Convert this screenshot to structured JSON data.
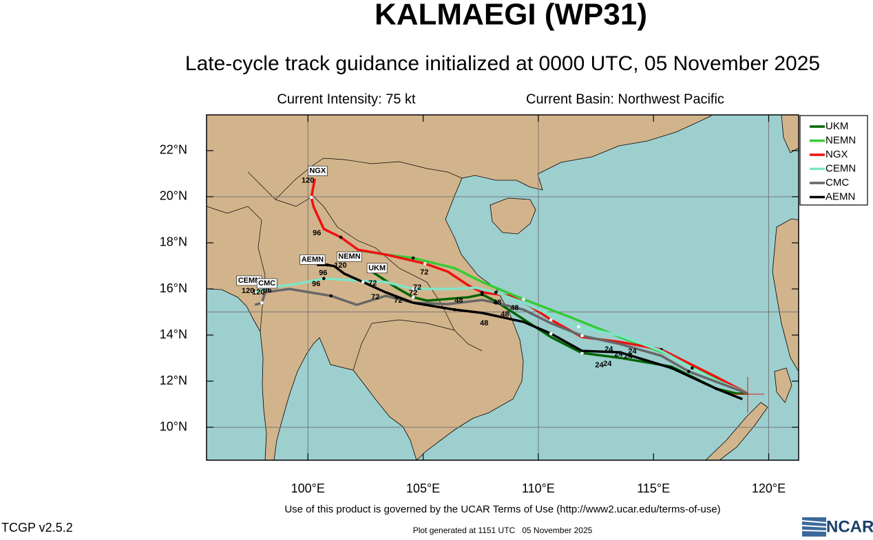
{
  "title": "KALMAEGI (WP31)",
  "subtitle": "Late-cycle track guidance initialized at 0000 UTC, 05 November 2025",
  "current_intensity": "Current Intensity: 75 kt",
  "current_basin": "Current Basin: Northwest Pacific",
  "map": {
    "lonlim": [
      95.6,
      121.3
    ],
    "latlim": [
      8.57,
      23.55
    ],
    "lonticks": [
      {
        "value": 100,
        "label": "100°E"
      },
      {
        "value": 105,
        "label": "105°E"
      },
      {
        "value": 110,
        "label": "110°E"
      },
      {
        "value": 115,
        "label": "115°E"
      },
      {
        "value": 120,
        "label": "120°E"
      }
    ],
    "latticks": [
      {
        "value": 10,
        "label": "10°N"
      },
      {
        "value": 12,
        "label": "12°N"
      },
      {
        "value": 14,
        "label": "14°N"
      },
      {
        "value": 16,
        "label": "16°N"
      },
      {
        "value": 18,
        "label": "18°N"
      },
      {
        "value": 20,
        "label": "20°N"
      },
      {
        "value": 22,
        "label": "22°N"
      }
    ],
    "grid_lon": [
      100,
      110,
      120
    ],
    "grid_lat": [
      10,
      15,
      20
    ]
  },
  "tracks": [
    {
      "name": "UKM",
      "color": "#006400",
      "lon": [
        119.1,
        118.62,
        117.73,
        115.78,
        113.54,
        111.9,
        110.55,
        108.16,
        107.56,
        106.97,
        105.17,
        104.57,
        103.83,
        102.78
      ],
      "lat": [
        11.46,
        11.46,
        11.67,
        12.63,
        13.01,
        13.22,
        13.91,
        15.46,
        15.76,
        15.64,
        15.49,
        15.64,
        16.06,
        16.75
      ],
      "tag": {
        "lon": 103.0,
        "lat": 16.9
      }
    },
    {
      "name": "NEMN",
      "color": "#33cc33",
      "lon": [
        119.1,
        117.73,
        115.64,
        113.54,
        111.45,
        109.36,
        107.56,
        106.37,
        104.57,
        103.38,
        102.39
      ],
      "lat": [
        11.46,
        12.12,
        13.16,
        13.91,
        14.75,
        15.55,
        16.3,
        16.9,
        17.34,
        17.49,
        17.64
      ],
      "tag": {
        "lon": 101.8,
        "lat": 17.4
      }
    },
    {
      "name": "NGX",
      "color": "#ee1111",
      "lon": [
        119.1,
        117.73,
        115.34,
        113.54,
        111.9,
        110.55,
        109.66,
        108.76,
        107.56,
        106.97,
        106.07,
        105.08,
        103.38,
        102.18,
        101.43,
        100.69,
        100.24,
        100.15,
        100.3
      ],
      "lat": [
        11.46,
        12.18,
        13.37,
        13.7,
        13.91,
        14.66,
        15.25,
        15.7,
        15.85,
        16.15,
        16.75,
        17.1,
        17.49,
        17.7,
        18.24,
        18.6,
        19.58,
        19.97,
        20.78
      ],
      "tag": {
        "lon": 100.42,
        "lat": 21.12
      }
    },
    {
      "name": "CEMN",
      "color": "#7fe5c8",
      "lon": [
        119.1,
        117.73,
        116.68,
        115.34,
        113.54,
        111.75,
        110.55,
        109.36,
        108.16,
        107.26,
        106.37,
        104.57,
        103.38,
        102.18,
        100.69,
        99.49,
        98.3,
        97.7
      ],
      "lat": [
        11.46,
        12.03,
        12.57,
        13.31,
        13.97,
        14.36,
        14.87,
        15.4,
        15.85,
        16.06,
        16.0,
        16.0,
        16.3,
        16.36,
        16.45,
        16.21,
        16.06,
        15.85
      ],
      "tag": {
        "lon": 97.45,
        "lat": 16.36
      }
    },
    {
      "name": "CMC",
      "color": "#666666",
      "lon": [
        119.1,
        117.73,
        116.53,
        115.34,
        113.54,
        111.9,
        110.55,
        109.36,
        108.16,
        107.56,
        106.07,
        104.57,
        103.38,
        102.12,
        101.0,
        99.19,
        98.15,
        98.0,
        97.7
      ],
      "lat": [
        11.46,
        11.97,
        12.42,
        13.1,
        13.61,
        13.97,
        14.51,
        15.1,
        15.4,
        15.52,
        15.34,
        15.4,
        15.7,
        15.31,
        15.7,
        16.0,
        15.85,
        15.4,
        15.31
      ],
      "tag": {
        "lon": 98.22,
        "lat": 16.24
      }
    },
    {
      "name": "AEMN",
      "color": "#000000",
      "lon": [
        118.86,
        117.73,
        115.78,
        113.54,
        111.9,
        110.55,
        109.36,
        107.56,
        106.37,
        104.57,
        103.38,
        102.39,
        101.58,
        101.14,
        100.84,
        100.39
      ],
      "lat": [
        11.22,
        11.67,
        12.57,
        13.25,
        13.31,
        14.06,
        14.57,
        14.96,
        15.1,
        15.4,
        15.85,
        16.3,
        16.66,
        16.99,
        17.04,
        17.04
      ],
      "tag": {
        "lon": 100.2,
        "lat": 17.27
      }
    }
  ],
  "hour_labels": [
    {
      "text": "24",
      "lon": 113.06,
      "lat": 13.37
    },
    {
      "text": "24",
      "lon": 113.48,
      "lat": 13.16
    },
    {
      "text": "24",
      "lon": 113.9,
      "lat": 13.07
    },
    {
      "text": "24",
      "lon": 112.65,
      "lat": 12.69
    },
    {
      "text": "24",
      "lon": 113.0,
      "lat": 12.75
    },
    {
      "text": "24",
      "lon": 114.08,
      "lat": 13.28
    },
    {
      "text": "48",
      "lon": 107.65,
      "lat": 14.51
    },
    {
      "text": "48",
      "lon": 108.22,
      "lat": 15.4
    },
    {
      "text": "48",
      "lon": 108.55,
      "lat": 14.9
    },
    {
      "text": "48",
      "lon": 108.97,
      "lat": 15.16
    },
    {
      "text": "48",
      "lon": 106.55,
      "lat": 15.49
    },
    {
      "text": "72",
      "lon": 104.75,
      "lat": 16.06
    },
    {
      "text": "72",
      "lon": 105.05,
      "lat": 16.72
    },
    {
      "text": "72",
      "lon": 102.93,
      "lat": 15.64
    },
    {
      "text": "72",
      "lon": 103.92,
      "lat": 15.49
    },
    {
      "text": "72",
      "lon": 104.57,
      "lat": 15.82
    },
    {
      "text": "72",
      "lon": 102.81,
      "lat": 16.24
    },
    {
      "text": "96",
      "lon": 100.39,
      "lat": 18.42
    },
    {
      "text": "96",
      "lon": 100.66,
      "lat": 16.69
    },
    {
      "text": "96",
      "lon": 100.36,
      "lat": 16.21
    },
    {
      "text": "96",
      "lon": 102.06,
      "lat": 17.49
    },
    {
      "text": "96",
      "lon": 98.24,
      "lat": 15.94
    },
    {
      "text": "120",
      "lon": 100.0,
      "lat": 20.69
    },
    {
      "text": "120",
      "lon": 101.41,
      "lat": 17.01
    },
    {
      "text": "120",
      "lon": 97.4,
      "lat": 15.91
    },
    {
      "text": "120",
      "lon": 97.85,
      "lat": 15.85
    }
  ],
  "terms": "Use of this product is governed by the UCAR Terms of Use (http://www2.ucar.edu/terms-of-use)",
  "version": "TCGP v2.5.2",
  "generated": "Plot generated at 1151 UTC   05 November 2025",
  "logo": "NCAR"
}
